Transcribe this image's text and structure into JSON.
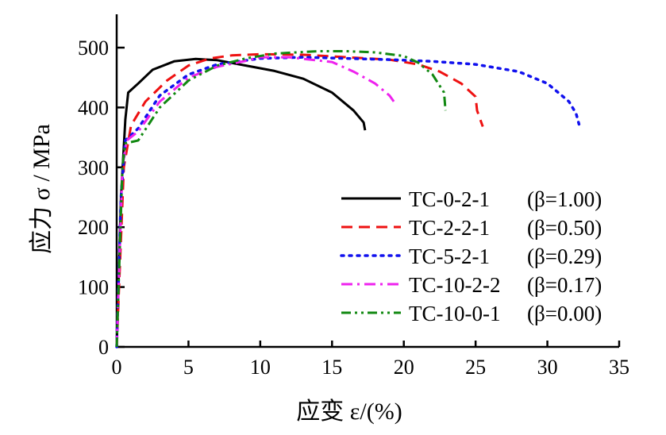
{
  "chart_data": {
    "type": "line",
    "title": "",
    "xlabel": "应变 ε/(%)",
    "ylabel": "应力 σ / MPa",
    "xlim": [
      0,
      35
    ],
    "ylim": [
      0,
      550
    ],
    "xticks": [
      0,
      5,
      10,
      15,
      20,
      25,
      30,
      35
    ],
    "yticks": [
      0,
      100,
      200,
      300,
      400,
      500
    ],
    "grid": false,
    "legend_position": "lower-right",
    "series": [
      {
        "name": "TC-0-2-1",
        "beta": "(β=1.00)",
        "color": "#000000",
        "dash": "solid",
        "points": [
          [
            0,
            0
          ],
          [
            0.3,
            250
          ],
          [
            0.6,
            380
          ],
          [
            0.8,
            425
          ],
          [
            1.5,
            440
          ],
          [
            2.5,
            463
          ],
          [
            4,
            477
          ],
          [
            5.5,
            481
          ],
          [
            7,
            479
          ],
          [
            9,
            470
          ],
          [
            11,
            461
          ],
          [
            13,
            448
          ],
          [
            15,
            425
          ],
          [
            16.5,
            395
          ],
          [
            17.2,
            375
          ],
          [
            17.3,
            362
          ]
        ]
      },
      {
        "name": "TC-2-2-1",
        "beta": "(β=0.50)",
        "color": "#ee1111",
        "dash": "dash",
        "points": [
          [
            0,
            0
          ],
          [
            0.5,
            300
          ],
          [
            1,
            370
          ],
          [
            2,
            410
          ],
          [
            3.5,
            445
          ],
          [
            5,
            470
          ],
          [
            6.5,
            482
          ],
          [
            8,
            487
          ],
          [
            10,
            489
          ],
          [
            13,
            488
          ],
          [
            16,
            484
          ],
          [
            19,
            480
          ],
          [
            21,
            472
          ],
          [
            22.5,
            460
          ],
          [
            24,
            440
          ],
          [
            25,
            418
          ],
          [
            25.1,
            395
          ],
          [
            25.5,
            368
          ]
        ]
      },
      {
        "name": "TC-5-2-1",
        "beta": "(β=0.29)",
        "color": "#1111ee",
        "dash": "dot",
        "points": [
          [
            0,
            0
          ],
          [
            0.3,
            250
          ],
          [
            0.6,
            345
          ],
          [
            1.5,
            365
          ],
          [
            3,
            420
          ],
          [
            5,
            455
          ],
          [
            7,
            472
          ],
          [
            10,
            482
          ],
          [
            13,
            484
          ],
          [
            16,
            482
          ],
          [
            19,
            480
          ],
          [
            22,
            477
          ],
          [
            25,
            472
          ],
          [
            28,
            460
          ],
          [
            30,
            440
          ],
          [
            31.5,
            410
          ],
          [
            32,
            390
          ],
          [
            32.2,
            372
          ]
        ]
      },
      {
        "name": "TC-10-2-2",
        "beta": "(β=0.17)",
        "color": "#ee22ee",
        "dash": "dashdot",
        "points": [
          [
            0,
            0
          ],
          [
            0.4,
            300
          ],
          [
            0.7,
            345
          ],
          [
            1.5,
            360
          ],
          [
            3,
            410
          ],
          [
            5,
            450
          ],
          [
            7,
            468
          ],
          [
            9,
            478
          ],
          [
            10,
            484
          ],
          [
            12,
            484
          ],
          [
            15,
            476
          ],
          [
            16.5,
            460
          ],
          [
            18,
            440
          ],
          [
            19,
            420
          ],
          [
            19.3,
            410
          ]
        ]
      },
      {
        "name": "TC-10-0-1",
        "beta": "(β=0.00)",
        "color": "#118811",
        "dash": "dashdotdot",
        "points": [
          [
            0,
            0
          ],
          [
            0.4,
            300
          ],
          [
            0.6,
            340
          ],
          [
            1.5,
            345
          ],
          [
            3,
            400
          ],
          [
            5,
            445
          ],
          [
            7,
            470
          ],
          [
            9,
            482
          ],
          [
            11,
            490
          ],
          [
            14,
            494
          ],
          [
            16,
            494
          ],
          [
            18,
            492
          ],
          [
            20,
            486
          ],
          [
            21,
            475
          ],
          [
            22,
            455
          ],
          [
            22.8,
            425
          ],
          [
            22.9,
            395
          ]
        ]
      }
    ]
  }
}
